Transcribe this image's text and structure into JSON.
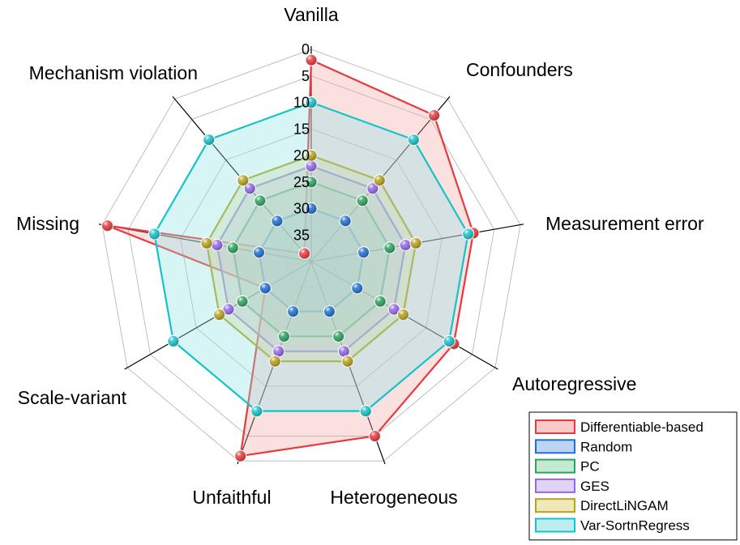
{
  "chart_data": {
    "type": "radar",
    "axes": [
      "Vanilla",
      "Confounders",
      "Measurement error",
      "Autoregressive",
      "Heterogeneous",
      "Unfaithful",
      "Scale-variant",
      "Missing",
      "Mechanism violation"
    ],
    "radial_ticks": [
      "0",
      "5",
      "10",
      "15",
      "20",
      "25",
      "30",
      "35"
    ],
    "radial_range": [
      0,
      40
    ],
    "radial_reversed": true,
    "grid": true,
    "legend_position": "bottom-right",
    "series": [
      {
        "name": "Differentiable-based",
        "color": "#e8393c",
        "fill": "#f4a6a6",
        "values": [
          2,
          4,
          9,
          9,
          5,
          1,
          30,
          1,
          38
        ]
      },
      {
        "name": "Random",
        "color": "#1f6fd1",
        "fill": "#8fb8ea",
        "values": [
          30,
          30,
          30,
          30,
          30,
          30,
          30,
          30,
          30
        ]
      },
      {
        "name": "PC",
        "color": "#2ca25f",
        "fill": "#9fd9b5",
        "values": [
          25,
          25,
          25,
          25,
          25,
          25,
          25,
          25,
          25
        ]
      },
      {
        "name": "GES",
        "color": "#9467e8",
        "fill": "#cbb6f0",
        "values": [
          22,
          22,
          22,
          22,
          22,
          22,
          22,
          22,
          22
        ]
      },
      {
        "name": "DirectLiNGAM",
        "color": "#b8a21a",
        "fill": "#e6d88a",
        "values": [
          20,
          20,
          20,
          20,
          20,
          20,
          20,
          20,
          20
        ]
      },
      {
        "name": "Var-SortnRegress",
        "color": "#16c3c8",
        "fill": "#8fe3e6",
        "values": [
          10,
          10,
          10,
          10,
          10,
          10,
          10,
          10,
          10
        ]
      }
    ]
  }
}
